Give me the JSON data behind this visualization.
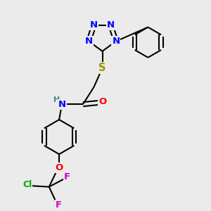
{
  "background_color": "#ebebeb",
  "atom_colors": {
    "C": "#000000",
    "N": "#0000ff",
    "O": "#ff0000",
    "S": "#999900",
    "H": "#4a8080",
    "F": "#cc00cc",
    "Cl": "#00aa00"
  },
  "bond_color": "#000000",
  "bond_width": 1.5,
  "font_size_atom": 9.5
}
